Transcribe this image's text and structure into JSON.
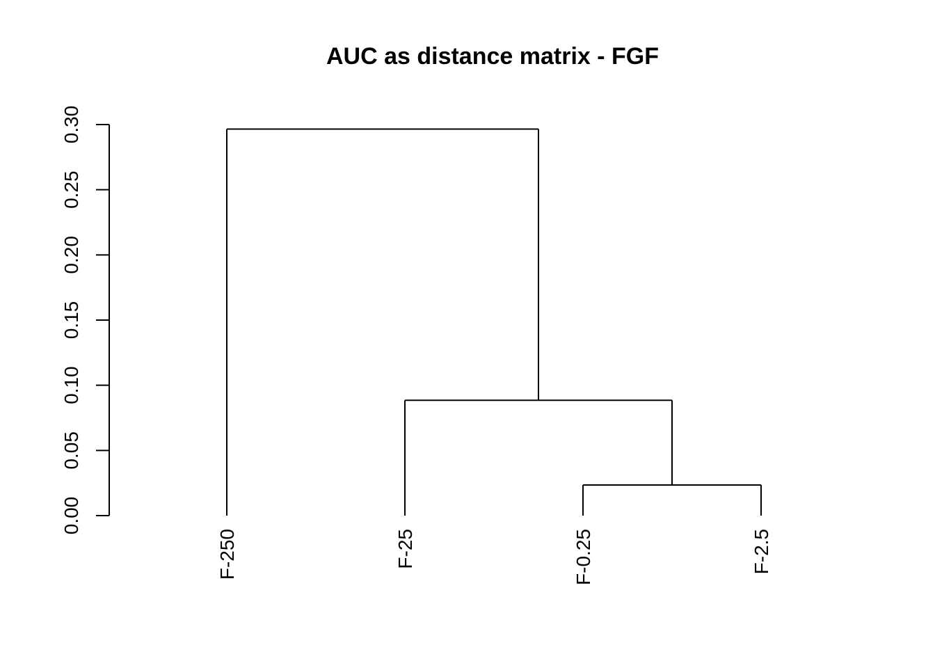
{
  "chart_data": {
    "type": "dendrogram",
    "title": "AUC as distance matrix - FGF",
    "xlabel": "",
    "ylabel": "",
    "ylim": [
      0,
      0.3
    ],
    "y_ticks": [
      "0.00",
      "0.05",
      "0.10",
      "0.15",
      "0.20",
      "0.25",
      "0.30"
    ],
    "y_tick_values": [
      0,
      0.05,
      0.1,
      0.15,
      0.2,
      0.25,
      0.3
    ],
    "leaves": [
      "F-250",
      "F-25",
      "F-0.25",
      "F-2.5"
    ],
    "merges": [
      {
        "left": "F-0.25",
        "right": "F-2.5",
        "height": 0.0235
      },
      {
        "left": "F-25",
        "right": "merge-1",
        "height": 0.0885
      },
      {
        "left": "F-250",
        "right": "merge-2",
        "height": 0.2965
      }
    ],
    "line_color": "#000000",
    "grid": false
  }
}
